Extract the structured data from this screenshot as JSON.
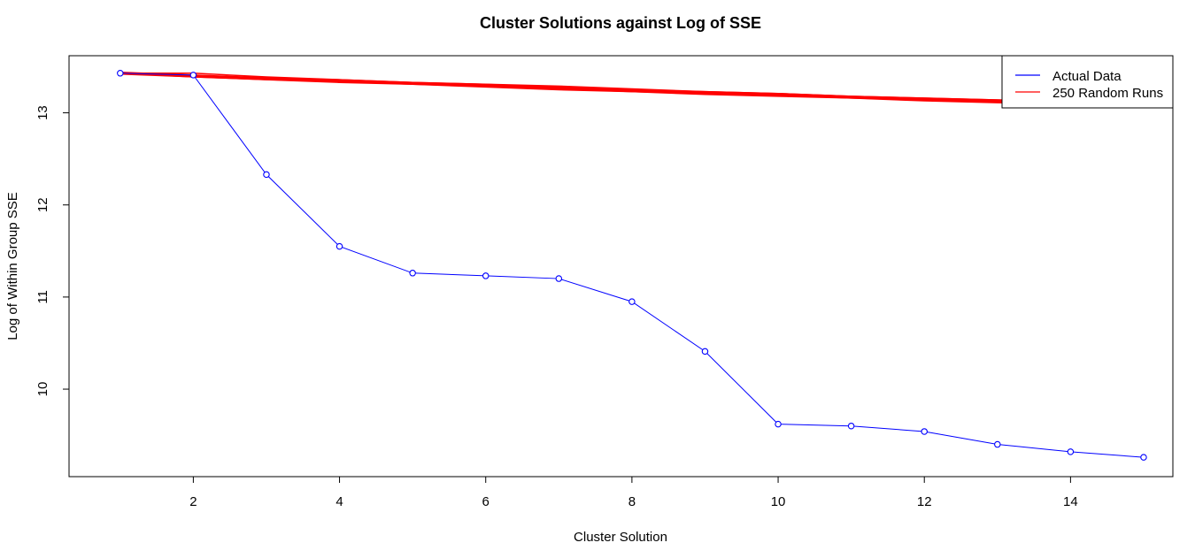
{
  "chart_data": {
    "type": "line",
    "title": "Cluster Solutions against Log of SSE",
    "xlabel": "Cluster Solution",
    "ylabel": "Log of Within Group SSE",
    "xlim": [
      0.3,
      15.4
    ],
    "ylim": [
      9.05,
      13.62
    ],
    "x_ticks": [
      2,
      4,
      6,
      8,
      10,
      12,
      14
    ],
    "y_ticks": [
      10,
      11,
      12,
      13
    ],
    "x": [
      1,
      2,
      3,
      4,
      5,
      6,
      7,
      8,
      9,
      10,
      11,
      12,
      13,
      14,
      15
    ],
    "series": [
      {
        "name": "Actual Data",
        "color": "#0000ff",
        "markers": "open-circle",
        "values": [
          13.43,
          13.41,
          12.33,
          11.55,
          11.26,
          11.23,
          11.2,
          10.95,
          10.41,
          9.62,
          9.6,
          9.54,
          9.4,
          9.32,
          9.26
        ]
      },
      {
        "name": "250 Random Runs",
        "color": "#ff0000",
        "values": [
          13.43,
          13.4,
          13.37,
          13.35,
          13.32,
          13.3,
          13.27,
          13.24,
          13.22,
          13.2,
          13.17,
          13.15,
          13.13,
          13.11,
          13.09
        ],
        "band_upper": [
          13.43,
          13.43,
          13.39,
          13.36,
          13.33,
          13.31,
          13.29,
          13.26,
          13.23,
          13.21,
          13.18,
          13.16,
          13.14,
          13.12,
          13.1
        ],
        "band_lower": [
          13.43,
          13.39,
          13.36,
          13.33,
          13.31,
          13.28,
          13.25,
          13.23,
          13.2,
          13.18,
          13.16,
          13.13,
          13.11,
          13.09,
          13.07
        ]
      }
    ],
    "legend": {
      "placement": "top-right"
    },
    "grid": false
  }
}
